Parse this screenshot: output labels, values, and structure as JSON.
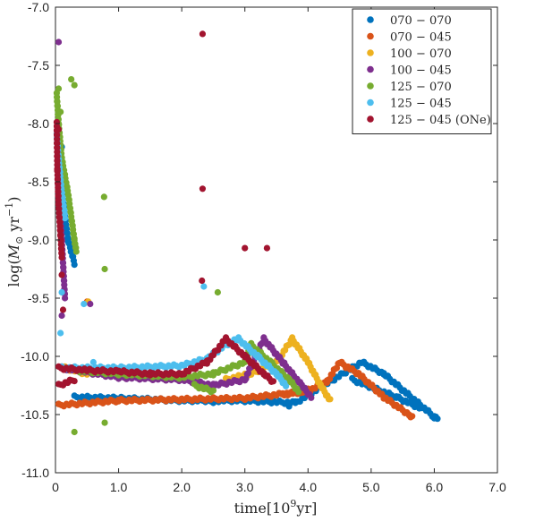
{
  "chart_data": {
    "type": "scatter",
    "xlabel_main": "time[10",
    "xlabel_sup": "9",
    "xlabel_end": "yr]",
    "ylabel_main": "log(",
    "ylabel_m": "M",
    "ylabel_sun": "⊙",
    "ylabel_unit": " yr",
    "ylabel_sup": "−1",
    "ylabel_end": ")",
    "xlim": [
      0,
      7.0
    ],
    "ylim": [
      -11.0,
      -7.0
    ],
    "x_ticks": [
      0,
      1.0,
      2.0,
      3.0,
      4.0,
      5.0,
      6.0,
      7.0
    ],
    "x_tick_labels": [
      "0",
      "1.0",
      "2.0",
      "3.0",
      "4.0",
      "5.0",
      "6.0",
      "7.0"
    ],
    "y_ticks": [
      -7.0,
      -7.5,
      -8.0,
      -8.5,
      -9.0,
      -9.5,
      -10.0,
      -10.5,
      -11.0
    ],
    "y_tick_labels": [
      "-7.0",
      "-7.5",
      "-8.0",
      "-8.5",
      "-9.0",
      "-9.5",
      "-10.0",
      "-10.5",
      "-11.0"
    ],
    "grid": false,
    "legend_position": "top-right",
    "series": [
      {
        "name": "070 − 070",
        "color": "#0072BD",
        "segments": [
          [
            [
              0.05,
              -8.3
            ],
            [
              0.1,
              -8.6
            ],
            [
              0.2,
              -9.0
            ],
            [
              0.3,
              -9.2
            ]
          ],
          [
            [
              0.3,
              -10.35
            ],
            [
              1.0,
              -10.36
            ],
            [
              2.0,
              -10.38
            ],
            [
              3.0,
              -10.38
            ],
            [
              3.8,
              -10.4
            ]
          ],
          [
            [
              3.8,
              -10.4
            ],
            [
              4.85,
              -10.05
            ],
            [
              5.2,
              -10.15
            ],
            [
              6.0,
              -10.52
            ],
            [
              6.05,
              -10.53
            ]
          ],
          [
            [
              4.7,
              -10.2
            ],
            [
              5.4,
              -10.35
            ],
            [
              5.8,
              -10.45
            ]
          ]
        ],
        "points": [
          [
            0.1,
            -8.2
          ],
          [
            0.12,
            -8.45
          ],
          [
            0.15,
            -8.7
          ],
          [
            3.7,
            -10.43
          ],
          [
            2.5,
            -10.4
          ]
        ]
      },
      {
        "name": "070 − 045",
        "color": "#D95319",
        "segments": [
          [
            [
              0.05,
              -10.42
            ],
            [
              1.0,
              -10.38
            ],
            [
              2.0,
              -10.37
            ],
            [
              3.0,
              -10.36
            ],
            [
              4.0,
              -10.3
            ],
            [
              4.3,
              -10.22
            ]
          ],
          [
            [
              4.3,
              -10.22
            ],
            [
              4.5,
              -10.05
            ],
            [
              4.8,
              -10.15
            ],
            [
              5.2,
              -10.35
            ],
            [
              5.6,
              -10.5
            ],
            [
              5.65,
              -10.52
            ]
          ],
          [
            [
              3.6,
              -10.33
            ],
            [
              4.0,
              -10.29
            ]
          ]
        ],
        "points": [
          [
            0.5,
            -9.53
          ],
          [
            0.05,
            -10.41
          ],
          [
            4.6,
            -10.1
          ]
        ]
      },
      {
        "name": "100 − 070",
        "color": "#EDB120",
        "segments": [
          [
            [
              2.7,
              -10.2
            ],
            [
              3.1,
              -10.15
            ],
            [
              3.5,
              -10.05
            ],
            [
              3.75,
              -9.85
            ]
          ],
          [
            [
              3.75,
              -9.85
            ],
            [
              4.0,
              -10.05
            ],
            [
              4.2,
              -10.25
            ],
            [
              4.35,
              -10.38
            ]
          ],
          [
            [
              0.15,
              -10.1
            ],
            [
              0.5,
              -10.15
            ]
          ]
        ],
        "points": [
          [
            0.52,
            -9.53
          ],
          [
            3.0,
            -10.15
          ]
        ]
      },
      {
        "name": "100 − 045",
        "color": "#7E2F8E",
        "segments": [
          [
            [
              0.1,
              -10.1
            ],
            [
              1.0,
              -10.18
            ],
            [
              2.0,
              -10.2
            ],
            [
              2.5,
              -10.25
            ],
            [
              3.0,
              -10.2
            ],
            [
              3.3,
              -9.85
            ]
          ],
          [
            [
              3.3,
              -9.85
            ],
            [
              3.6,
              -10.05
            ],
            [
              3.9,
              -10.25
            ],
            [
              4.05,
              -10.35
            ]
          ],
          [
            [
              0.05,
              -8.6
            ],
            [
              0.1,
              -9.0
            ],
            [
              0.15,
              -9.5
            ]
          ]
        ],
        "points": [
          [
            0.05,
            -7.3
          ],
          [
            0.55,
            -9.55
          ],
          [
            0.1,
            -9.65
          ]
        ]
      },
      {
        "name": "125 − 070",
        "color": "#77AC30",
        "segments": [
          [
            [
              0.02,
              -7.75
            ],
            [
              0.05,
              -8.0
            ],
            [
              0.1,
              -8.3
            ],
            [
              0.2,
              -8.6
            ],
            [
              0.3,
              -9.0
            ],
            [
              0.33,
              -9.1
            ]
          ],
          [
            [
              0.3,
              -10.12
            ],
            [
              1.0,
              -10.15
            ],
            [
              2.0,
              -10.18
            ],
            [
              2.5,
              -10.15
            ],
            [
              3.0,
              -10.05
            ],
            [
              3.1,
              -9.9
            ]
          ],
          [
            [
              3.1,
              -9.9
            ],
            [
              3.4,
              -10.05
            ],
            [
              3.7,
              -10.2
            ],
            [
              3.85,
              -10.3
            ]
          ],
          [
            [
              2.2,
              -10.25
            ],
            [
              2.5,
              -10.3
            ]
          ]
        ],
        "points": [
          [
            0.25,
            -7.62
          ],
          [
            0.3,
            -7.67
          ],
          [
            0.77,
            -8.63
          ],
          [
            0.78,
            -9.25
          ],
          [
            0.78,
            -10.57
          ],
          [
            2.57,
            -9.45
          ],
          [
            0.05,
            -7.7
          ],
          [
            0.08,
            -7.9
          ],
          [
            0.3,
            -10.65
          ]
        ]
      },
      {
        "name": "125 − 045",
        "color": "#4DBEEE",
        "segments": [
          [
            [
              0.02,
              -8.1
            ],
            [
              0.05,
              -8.3
            ],
            [
              0.1,
              -8.6
            ],
            [
              0.15,
              -8.8
            ]
          ],
          [
            [
              0.1,
              -10.1
            ],
            [
              1.0,
              -10.1
            ],
            [
              2.0,
              -10.08
            ],
            [
              2.4,
              -10.02
            ],
            [
              2.7,
              -9.9
            ],
            [
              2.9,
              -9.85
            ]
          ],
          [
            [
              2.9,
              -9.85
            ],
            [
              3.2,
              -10.0
            ],
            [
              3.5,
              -10.15
            ],
            [
              3.65,
              -10.25
            ]
          ]
        ],
        "points": [
          [
            0.1,
            -9.45
          ],
          [
            0.08,
            -9.8
          ],
          [
            0.45,
            -9.55
          ],
          [
            0.6,
            -10.05
          ],
          [
            2.35,
            -9.4
          ]
        ]
      },
      {
        "name": "125 − 045 (ONe)",
        "color": "#A2142F",
        "segments": [
          [
            [
              0.02,
              -8.0
            ],
            [
              0.03,
              -8.4
            ],
            [
              0.05,
              -8.7
            ],
            [
              0.08,
              -8.95
            ],
            [
              0.1,
              -9.15
            ]
          ],
          [
            [
              0.05,
              -10.1
            ],
            [
              0.5,
              -10.12
            ],
            [
              1.0,
              -10.13
            ],
            [
              1.5,
              -10.15
            ],
            [
              2.0,
              -10.15
            ],
            [
              2.4,
              -10.05
            ],
            [
              2.7,
              -9.85
            ]
          ],
          [
            [
              2.7,
              -9.85
            ],
            [
              3.0,
              -10.0
            ],
            [
              3.3,
              -10.15
            ],
            [
              3.45,
              -10.22
            ]
          ],
          [
            [
              0.05,
              -10.25
            ],
            [
              0.3,
              -10.2
            ]
          ]
        ],
        "points": [
          [
            2.33,
            -7.23
          ],
          [
            2.33,
            -8.56
          ],
          [
            2.32,
            -9.35
          ],
          [
            3.0,
            -9.07
          ],
          [
            3.35,
            -9.07
          ],
          [
            0.05,
            -8.05
          ],
          [
            0.1,
            -9.3
          ],
          [
            0.12,
            -9.6
          ]
        ]
      }
    ]
  }
}
